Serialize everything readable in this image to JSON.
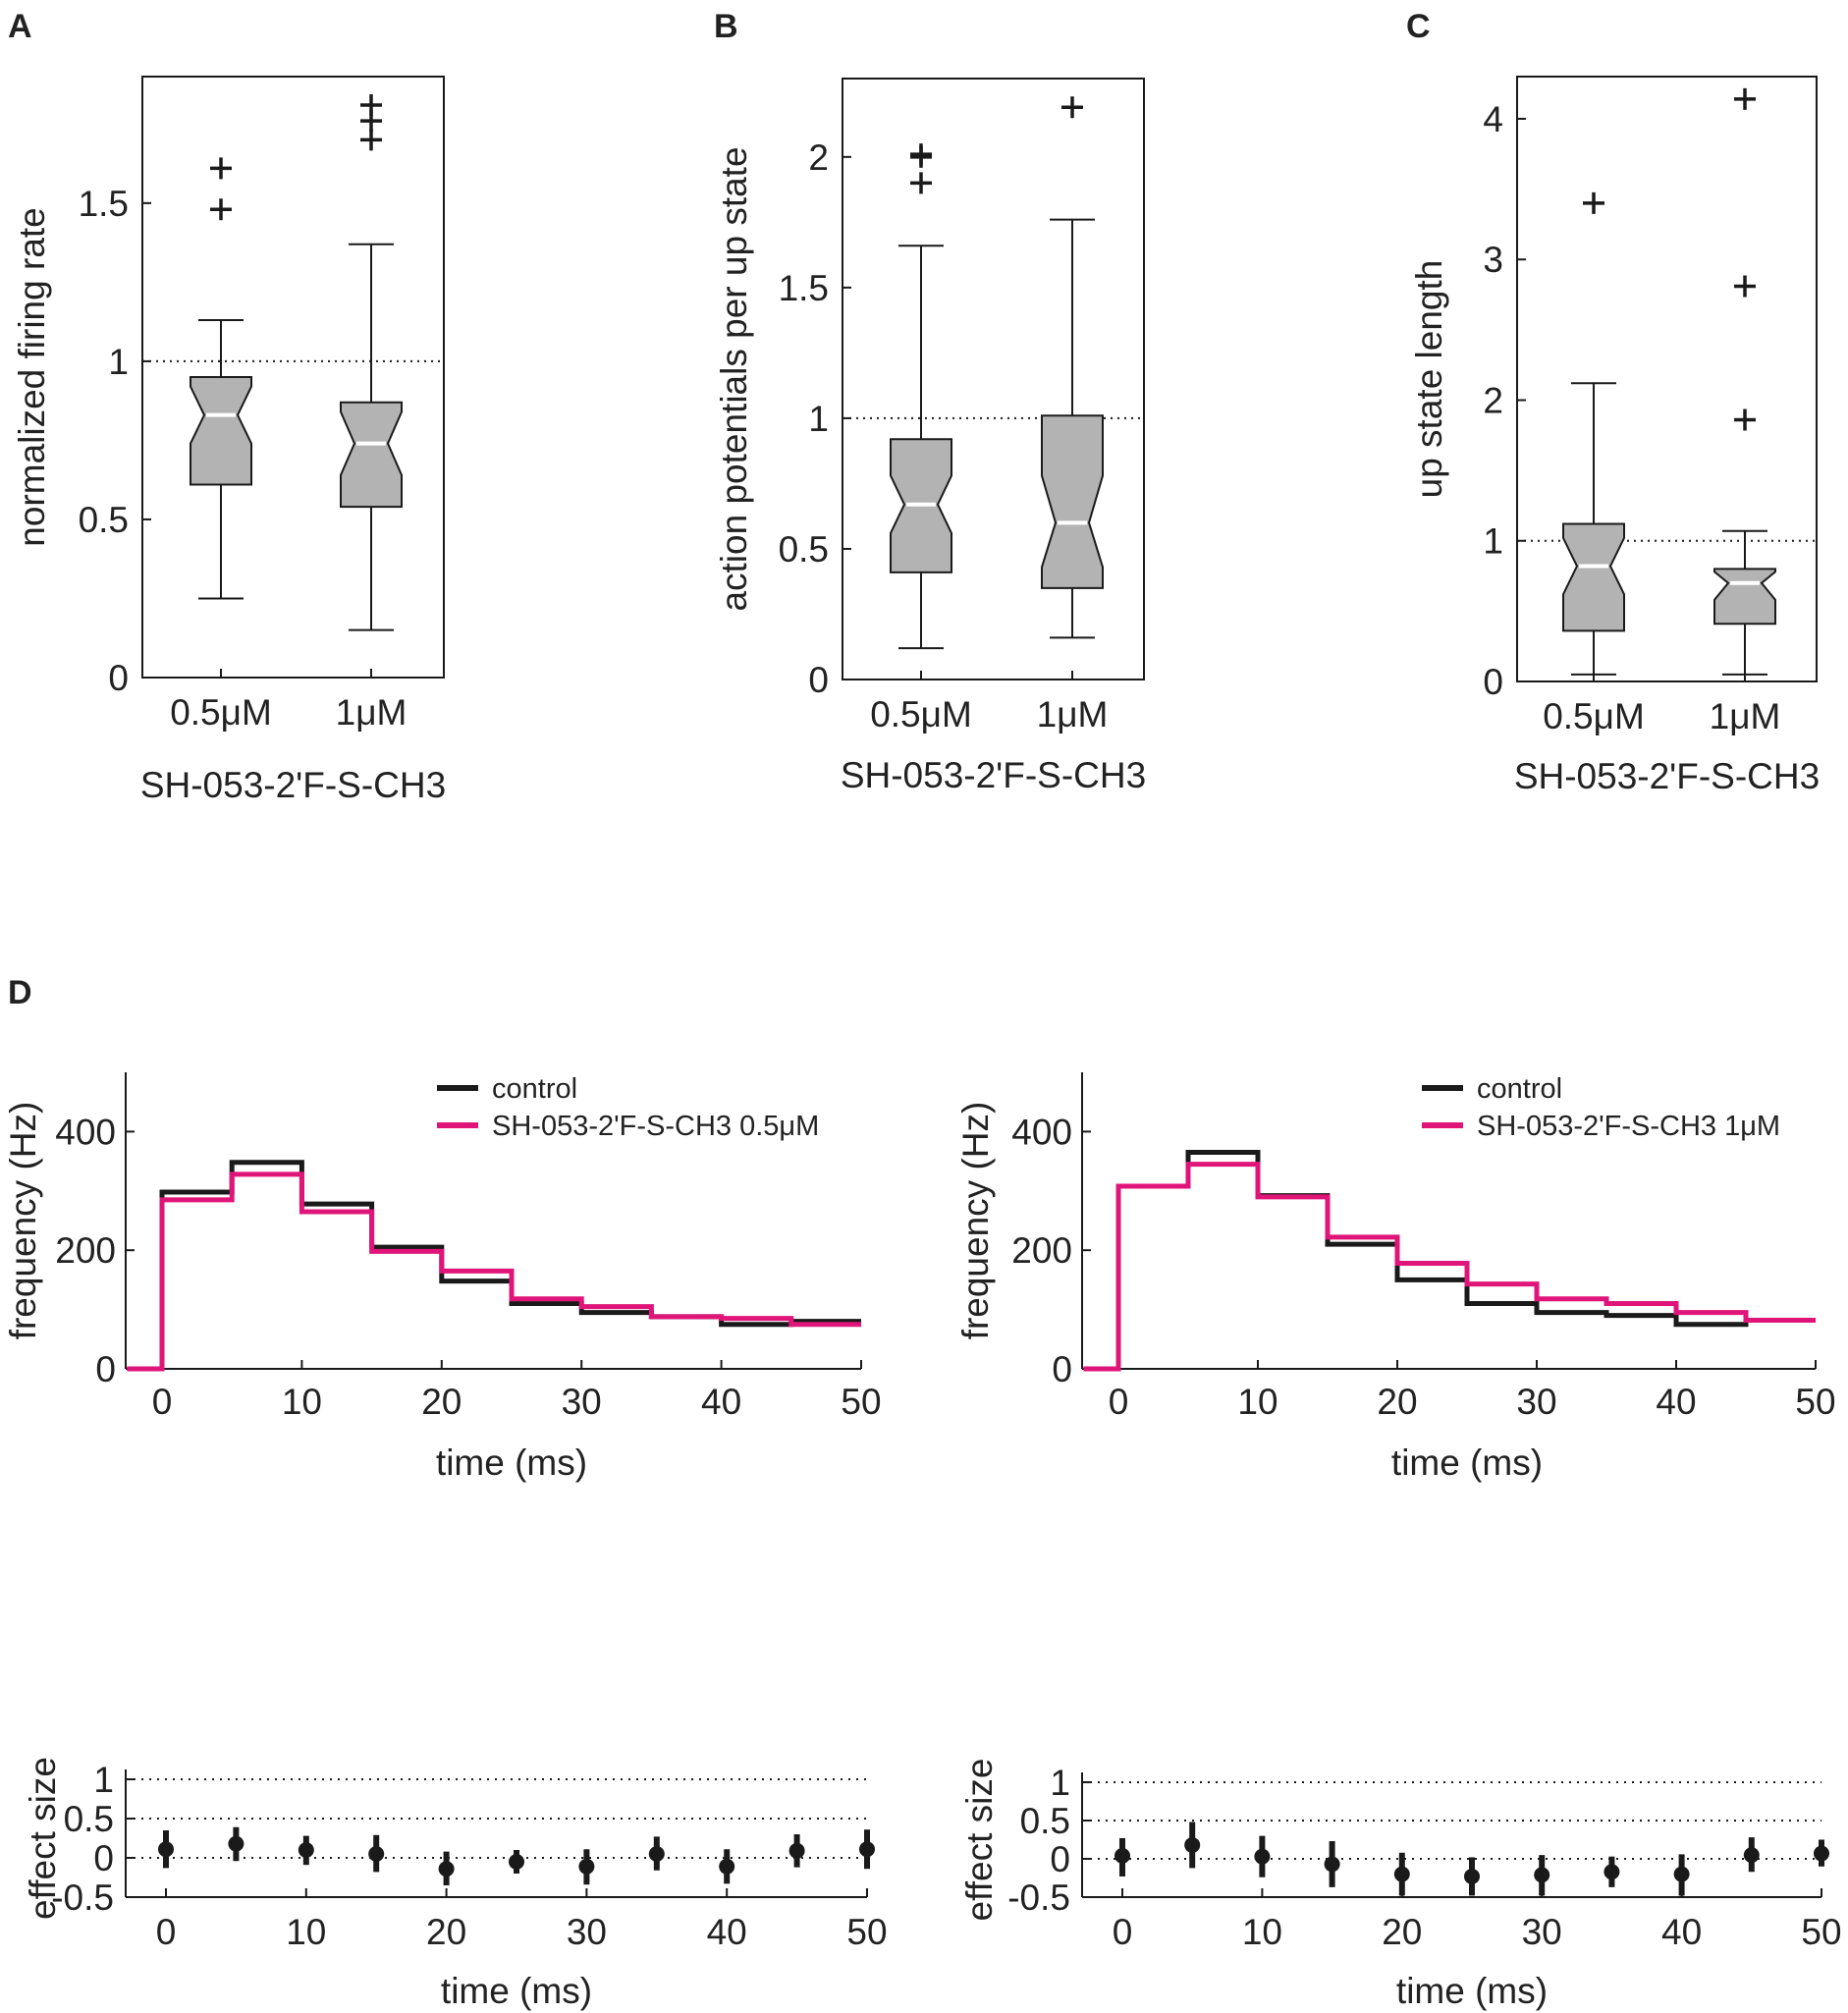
{
  "chart_data": [
    {
      "panel": "A",
      "type": "boxplot",
      "ylabel": "normalized firing rate",
      "xlabel": "SH-053-2'F-S-CH3",
      "ylim": [
        0,
        1.9
      ],
      "yticks": [
        0,
        0.5,
        1,
        1.5
      ],
      "ytick_labels": [
        "0",
        "0.5",
        "1",
        "1.5"
      ],
      "reference_line": 1,
      "categories": [
        "0.5μM",
        "1μM"
      ],
      "boxes": [
        {
          "label": "0.5μM",
          "whisker_low": 0.25,
          "q1": 0.61,
          "median": 0.83,
          "q3": 0.95,
          "whisker_high": 1.13,
          "notch_low": 0.74,
          "notch_high": 0.92,
          "outliers": [
            1.48,
            1.61
          ]
        },
        {
          "label": "1μM",
          "whisker_low": 0.15,
          "q1": 0.54,
          "median": 0.74,
          "q3": 0.87,
          "whisker_high": 1.37,
          "notch_low": 0.64,
          "notch_high": 0.84,
          "outliers": [
            1.7,
            1.76,
            1.81
          ]
        }
      ]
    },
    {
      "panel": "B",
      "type": "boxplot",
      "ylabel": "action potentials per up state",
      "xlabel": "SH-053-2'F-S-CH3",
      "ylim": [
        0,
        2.3
      ],
      "yticks": [
        0,
        0.5,
        1,
        1.5,
        2
      ],
      "ytick_labels": [
        "0",
        "0.5",
        "1",
        "1.5",
        "2"
      ],
      "reference_line": 1,
      "categories": [
        "0.5μM",
        "1μM"
      ],
      "boxes": [
        {
          "label": "0.5μM",
          "whisker_low": 0.12,
          "q1": 0.41,
          "median": 0.67,
          "q3": 0.92,
          "whisker_high": 1.66,
          "notch_low": 0.56,
          "notch_high": 0.78,
          "outliers": [
            1.9,
            2.0,
            2.01
          ]
        },
        {
          "label": "1μM",
          "whisker_low": 0.16,
          "q1": 0.35,
          "median": 0.6,
          "q3": 1.01,
          "whisker_high": 1.76,
          "notch_low": 0.43,
          "notch_high": 0.78,
          "outliers": [
            2.19
          ]
        }
      ]
    },
    {
      "panel": "C",
      "type": "boxplot",
      "ylabel": "up state length",
      "xlabel": "SH-053-2'F-S-CH3",
      "ylim": [
        0,
        4.3
      ],
      "yticks": [
        0,
        1,
        2,
        3,
        4
      ],
      "ytick_labels": [
        "0",
        "1",
        "2",
        "3",
        "4"
      ],
      "reference_line": 1,
      "categories": [
        "0.5μM",
        "1μM"
      ],
      "boxes": [
        {
          "label": "0.5μM",
          "whisker_low": 0.05,
          "q1": 0.36,
          "median": 0.82,
          "q3": 1.12,
          "whisker_high": 2.12,
          "notch_low": 0.62,
          "notch_high": 1.02,
          "outliers": [
            3.4
          ]
        },
        {
          "label": "1μM",
          "whisker_low": 0.05,
          "q1": 0.41,
          "median": 0.7,
          "q3": 0.8,
          "whisker_high": 1.07,
          "notch_low": 0.58,
          "notch_high": 0.78,
          "outliers": [
            1.86,
            2.81,
            4.14
          ]
        }
      ]
    },
    {
      "panel": "D",
      "type": "line",
      "subtype": "step-histogram",
      "xlabel": "time (ms)",
      "ylabel": "frequency (Hz)",
      "xlim": [
        -2.5,
        50
      ],
      "ylim": [
        0,
        500
      ],
      "xticks": [
        0,
        10,
        20,
        30,
        40,
        50
      ],
      "yticks": [
        0,
        200,
        400
      ],
      "legend_position": "top-right",
      "bin_edges": [
        0,
        5,
        10,
        15,
        20,
        25,
        30,
        35,
        40,
        45,
        50
      ],
      "series": [
        {
          "name": "control",
          "color": "#1a1a1a",
          "values": [
            298,
            348,
            278,
            205,
            148,
            110,
            95,
            88,
            75,
            80
          ]
        },
        {
          "name": "SH-053-2'F-S-CH3  0.5μM",
          "color": "#e0157a",
          "values": [
            285,
            328,
            265,
            198,
            165,
            118,
            105,
            88,
            85,
            75
          ]
        }
      ]
    },
    {
      "panel": "D",
      "type": "line",
      "subtype": "step-histogram",
      "xlabel": "time (ms)",
      "ylabel": "frequency (Hz)",
      "xlim": [
        -2.5,
        50
      ],
      "ylim": [
        0,
        500
      ],
      "xticks": [
        0,
        10,
        20,
        30,
        40,
        50
      ],
      "yticks": [
        0,
        200,
        400
      ],
      "legend_position": "top-right",
      "bin_edges": [
        0,
        5,
        10,
        15,
        20,
        25,
        30,
        35,
        40,
        45,
        50
      ],
      "series": [
        {
          "name": "control",
          "color": "#1a1a1a",
          "values": [
            308,
            365,
            292,
            210,
            150,
            110,
            95,
            90,
            75,
            82
          ]
        },
        {
          "name": "SH-053-2'F-S-CH3  1μM",
          "color": "#e0157a",
          "values": [
            308,
            345,
            290,
            222,
            178,
            143,
            118,
            110,
            95,
            82
          ]
        }
      ]
    },
    {
      "panel": "D",
      "type": "scatter",
      "subtype": "errorbar",
      "xlabel": "time (ms)",
      "ylabel": "effect size",
      "xlim": [
        -2.5,
        50
      ],
      "ylim": [
        -0.5,
        1
      ],
      "xticks": [
        0,
        10,
        20,
        30,
        40,
        50
      ],
      "yticks": [
        -0.5,
        0,
        0.5,
        1
      ],
      "ytick_labels": [
        "-0.5",
        "0",
        "0.5",
        "1"
      ],
      "reference_lines": [
        0,
        0.5,
        1
      ],
      "points": [
        {
          "x": 0,
          "y": 0.11,
          "low": -0.13,
          "high": 0.35
        },
        {
          "x": 5,
          "y": 0.18,
          "low": -0.04,
          "high": 0.39
        },
        {
          "x": 10,
          "y": 0.1,
          "low": -0.09,
          "high": 0.28
        },
        {
          "x": 15,
          "y": 0.05,
          "low": -0.18,
          "high": 0.29
        },
        {
          "x": 20,
          "y": -0.14,
          "low": -0.35,
          "high": 0.08
        },
        {
          "x": 25,
          "y": -0.05,
          "low": -0.2,
          "high": 0.1
        },
        {
          "x": 30,
          "y": -0.11,
          "low": -0.34,
          "high": 0.11
        },
        {
          "x": 35,
          "y": 0.05,
          "low": -0.16,
          "high": 0.27
        },
        {
          "x": 40,
          "y": -0.11,
          "low": -0.33,
          "high": 0.11
        },
        {
          "x": 45,
          "y": 0.09,
          "low": -0.12,
          "high": 0.3
        },
        {
          "x": 50,
          "y": 0.11,
          "low": -0.14,
          "high": 0.36
        }
      ]
    },
    {
      "panel": "D",
      "type": "scatter",
      "subtype": "errorbar",
      "xlabel": "time (ms)",
      "ylabel": "effect size",
      "xlim": [
        -2.5,
        50
      ],
      "ylim": [
        -0.5,
        1
      ],
      "xticks": [
        0,
        10,
        20,
        30,
        40,
        50
      ],
      "yticks": [
        -0.5,
        0,
        0.5,
        1
      ],
      "ytick_labels": [
        "-0.5",
        "0",
        "0.5",
        "1"
      ],
      "reference_lines": [
        0,
        0.5,
        1
      ],
      "points": [
        {
          "x": 0,
          "y": 0.04,
          "low": -0.23,
          "high": 0.27
        },
        {
          "x": 5,
          "y": 0.18,
          "low": -0.12,
          "high": 0.48
        },
        {
          "x": 10,
          "y": 0.03,
          "low": -0.24,
          "high": 0.3
        },
        {
          "x": 15,
          "y": -0.07,
          "low": -0.37,
          "high": 0.23
        },
        {
          "x": 20,
          "y": -0.2,
          "low": -0.48,
          "high": 0.08
        },
        {
          "x": 25,
          "y": -0.23,
          "low": -0.48,
          "high": 0.02
        },
        {
          "x": 30,
          "y": -0.21,
          "low": -0.48,
          "high": 0.05
        },
        {
          "x": 35,
          "y": -0.17,
          "low": -0.37,
          "high": 0.03
        },
        {
          "x": 40,
          "y": -0.2,
          "low": -0.48,
          "high": 0.06
        },
        {
          "x": 45,
          "y": 0.05,
          "low": -0.17,
          "high": 0.28
        },
        {
          "x": 50,
          "y": 0.07,
          "low": -0.1,
          "high": 0.25
        }
      ]
    }
  ]
}
